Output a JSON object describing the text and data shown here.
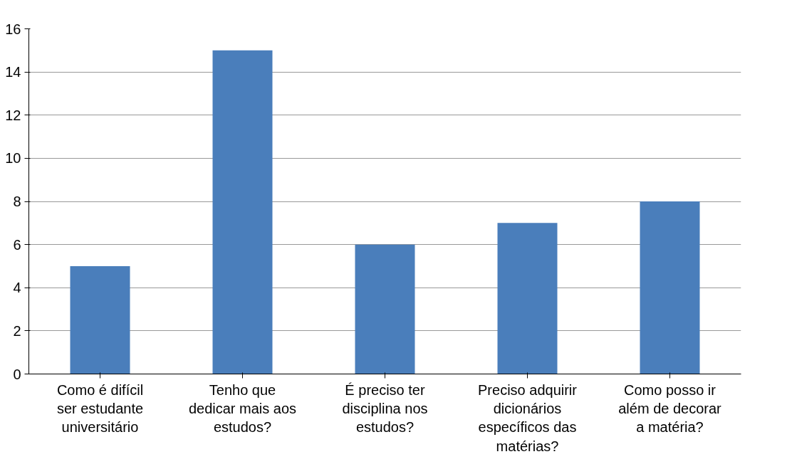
{
  "chart_data": {
    "type": "bar",
    "categories": [
      "Como é difícil ser estudante universitário",
      "Tenho que dedicar mais aos estudos?",
      "É preciso ter disciplina nos estudos?",
      "Preciso adquirir dicionários específicos das matérias?",
      "Como posso ir além de decorar a matéria?"
    ],
    "values": [
      5,
      15,
      6,
      7,
      8
    ],
    "color": "#4a7ebb",
    "ylim": [
      0,
      16
    ],
    "yticks": [
      0,
      2,
      4,
      6,
      8,
      10,
      12,
      14,
      16
    ],
    "grid": "y"
  }
}
